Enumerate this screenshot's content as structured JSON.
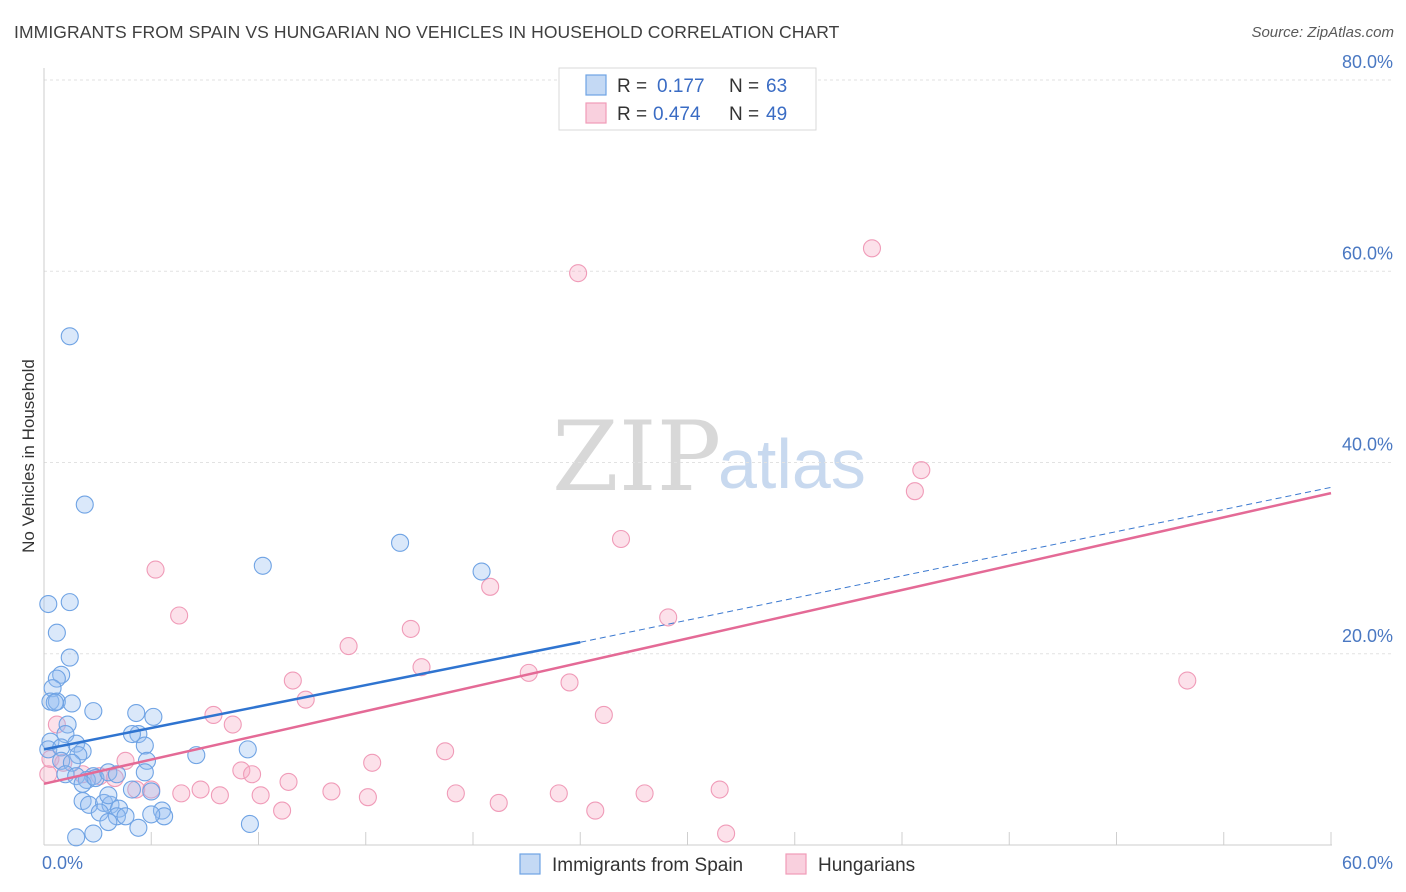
{
  "title": "IMMIGRANTS FROM SPAIN VS HUNGARIAN NO VEHICLES IN HOUSEHOLD CORRELATION CHART",
  "source": "Source: ZipAtlas.com",
  "watermark": {
    "zip": "ZIP",
    "atlas": "atlas"
  },
  "legend": {
    "r_label": "R =",
    "n_label": "N =",
    "rows": [
      {
        "r": "0.177",
        "n": "63",
        "color": "#6fa3e4"
      },
      {
        "r": "0.474",
        "n": "49",
        "color": "#f09bb8"
      }
    ]
  },
  "chart_data": {
    "type": "scatter",
    "title": "IMMIGRANTS FROM SPAIN VS HUNGARIAN NO VEHICLES IN HOUSEHOLD CORRELATION CHART",
    "xlabel": "",
    "ylabel": "No Vehicles in Household",
    "xlim": [
      0,
      60
    ],
    "ylim": [
      0,
      80
    ],
    "x_ticks": [
      {
        "v": 0,
        "label": "0.0%"
      },
      {
        "v": 60,
        "label": "60.0%"
      }
    ],
    "y_ticks": [
      {
        "v": 20,
        "label": "20.0%"
      },
      {
        "v": 40,
        "label": "40.0%"
      },
      {
        "v": 60,
        "label": "60.0%"
      },
      {
        "v": 80,
        "label": "80.0%"
      }
    ],
    "series": [
      {
        "name": "Immigrants from Spain",
        "color": "#6fa3e4",
        "trend": {
          "x0": 0,
          "y0": 10.0,
          "x1": 25,
          "y1": 21.2,
          "dash_to_x": 60,
          "dash_to_y": 37.4
        },
        "points": [
          [
            0.2,
            25.2
          ],
          [
            0.6,
            22.2
          ],
          [
            1.2,
            25.4
          ],
          [
            1.2,
            19.6
          ],
          [
            0.8,
            17.8
          ],
          [
            0.6,
            17.4
          ],
          [
            0.4,
            16.4
          ],
          [
            0.3,
            15.0
          ],
          [
            0.6,
            15.0
          ],
          [
            1.3,
            14.8
          ],
          [
            2.3,
            14.0
          ],
          [
            1.1,
            12.6
          ],
          [
            1.0,
            11.6
          ],
          [
            1.5,
            10.6
          ],
          [
            0.3,
            10.8
          ],
          [
            0.2,
            10.0
          ],
          [
            0.8,
            10.2
          ],
          [
            1.8,
            9.8
          ],
          [
            1.6,
            9.4
          ],
          [
            0.8,
            8.8
          ],
          [
            1.3,
            8.6
          ],
          [
            1.0,
            7.4
          ],
          [
            1.5,
            7.2
          ],
          [
            2.3,
            7.2
          ],
          [
            2.0,
            6.8
          ],
          [
            1.8,
            6.4
          ],
          [
            2.4,
            7.0
          ],
          [
            3.0,
            7.6
          ],
          [
            3.4,
            7.4
          ],
          [
            1.8,
            4.6
          ],
          [
            2.1,
            4.2
          ],
          [
            2.8,
            4.4
          ],
          [
            3.1,
            4.2
          ],
          [
            3.5,
            3.8
          ],
          [
            2.6,
            3.4
          ],
          [
            3.4,
            3.0
          ],
          [
            3.8,
            3.0
          ],
          [
            3.0,
            2.4
          ],
          [
            2.3,
            1.2
          ],
          [
            1.5,
            0.8
          ],
          [
            4.4,
            11.6
          ],
          [
            4.1,
            11.6
          ],
          [
            4.3,
            13.8
          ],
          [
            5.1,
            13.4
          ],
          [
            4.7,
            10.4
          ],
          [
            4.8,
            8.8
          ],
          [
            4.7,
            7.6
          ],
          [
            5.0,
            5.6
          ],
          [
            4.1,
            5.8
          ],
          [
            5.5,
            3.6
          ],
          [
            5.6,
            3.0
          ],
          [
            4.4,
            1.8
          ],
          [
            7.1,
            9.4
          ],
          [
            9.5,
            10.0
          ],
          [
            9.6,
            2.2
          ],
          [
            10.2,
            29.2
          ],
          [
            16.6,
            31.6
          ],
          [
            20.4,
            28.6
          ],
          [
            1.2,
            53.2
          ],
          [
            1.9,
            35.6
          ],
          [
            3.0,
            5.2
          ],
          [
            5.0,
            3.2
          ],
          [
            0.5,
            14.9
          ]
        ]
      },
      {
        "name": "Hungarians",
        "color": "#f09bb8",
        "trend": {
          "x0": 0,
          "y0": 6.4,
          "x1": 60,
          "y1": 36.8
        },
        "points": [
          [
            0.3,
            9.0
          ],
          [
            0.6,
            12.6
          ],
          [
            0.9,
            8.6
          ],
          [
            1.8,
            7.4
          ],
          [
            2.6,
            7.2
          ],
          [
            3.3,
            7.0
          ],
          [
            3.8,
            8.8
          ],
          [
            4.3,
            5.8
          ],
          [
            5.0,
            5.8
          ],
          [
            5.2,
            28.8
          ],
          [
            6.3,
            24.0
          ],
          [
            6.4,
            5.4
          ],
          [
            7.3,
            5.8
          ],
          [
            7.9,
            13.6
          ],
          [
            8.2,
            5.2
          ],
          [
            8.8,
            12.6
          ],
          [
            9.2,
            7.8
          ],
          [
            9.7,
            7.4
          ],
          [
            10.1,
            5.2
          ],
          [
            11.1,
            3.6
          ],
          [
            11.4,
            6.6
          ],
          [
            11.6,
            17.2
          ],
          [
            12.2,
            15.2
          ],
          [
            13.4,
            5.6
          ],
          [
            14.2,
            20.8
          ],
          [
            15.1,
            5.0
          ],
          [
            15.3,
            8.6
          ],
          [
            17.1,
            22.6
          ],
          [
            17.6,
            18.6
          ],
          [
            18.7,
            9.8
          ],
          [
            19.2,
            5.4
          ],
          [
            20.8,
            27.0
          ],
          [
            21.2,
            4.4
          ],
          [
            22.6,
            18.0
          ],
          [
            24.0,
            5.4
          ],
          [
            24.9,
            59.8
          ],
          [
            24.5,
            17.0
          ],
          [
            25.7,
            3.6
          ],
          [
            26.1,
            13.6
          ],
          [
            26.9,
            32.0
          ],
          [
            28.0,
            5.4
          ],
          [
            29.1,
            23.8
          ],
          [
            31.5,
            5.8
          ],
          [
            31.8,
            1.2
          ],
          [
            38.6,
            62.4
          ],
          [
            40.6,
            37.0
          ],
          [
            40.9,
            39.2
          ],
          [
            53.3,
            17.2
          ],
          [
            0.2,
            7.4
          ]
        ]
      }
    ]
  }
}
